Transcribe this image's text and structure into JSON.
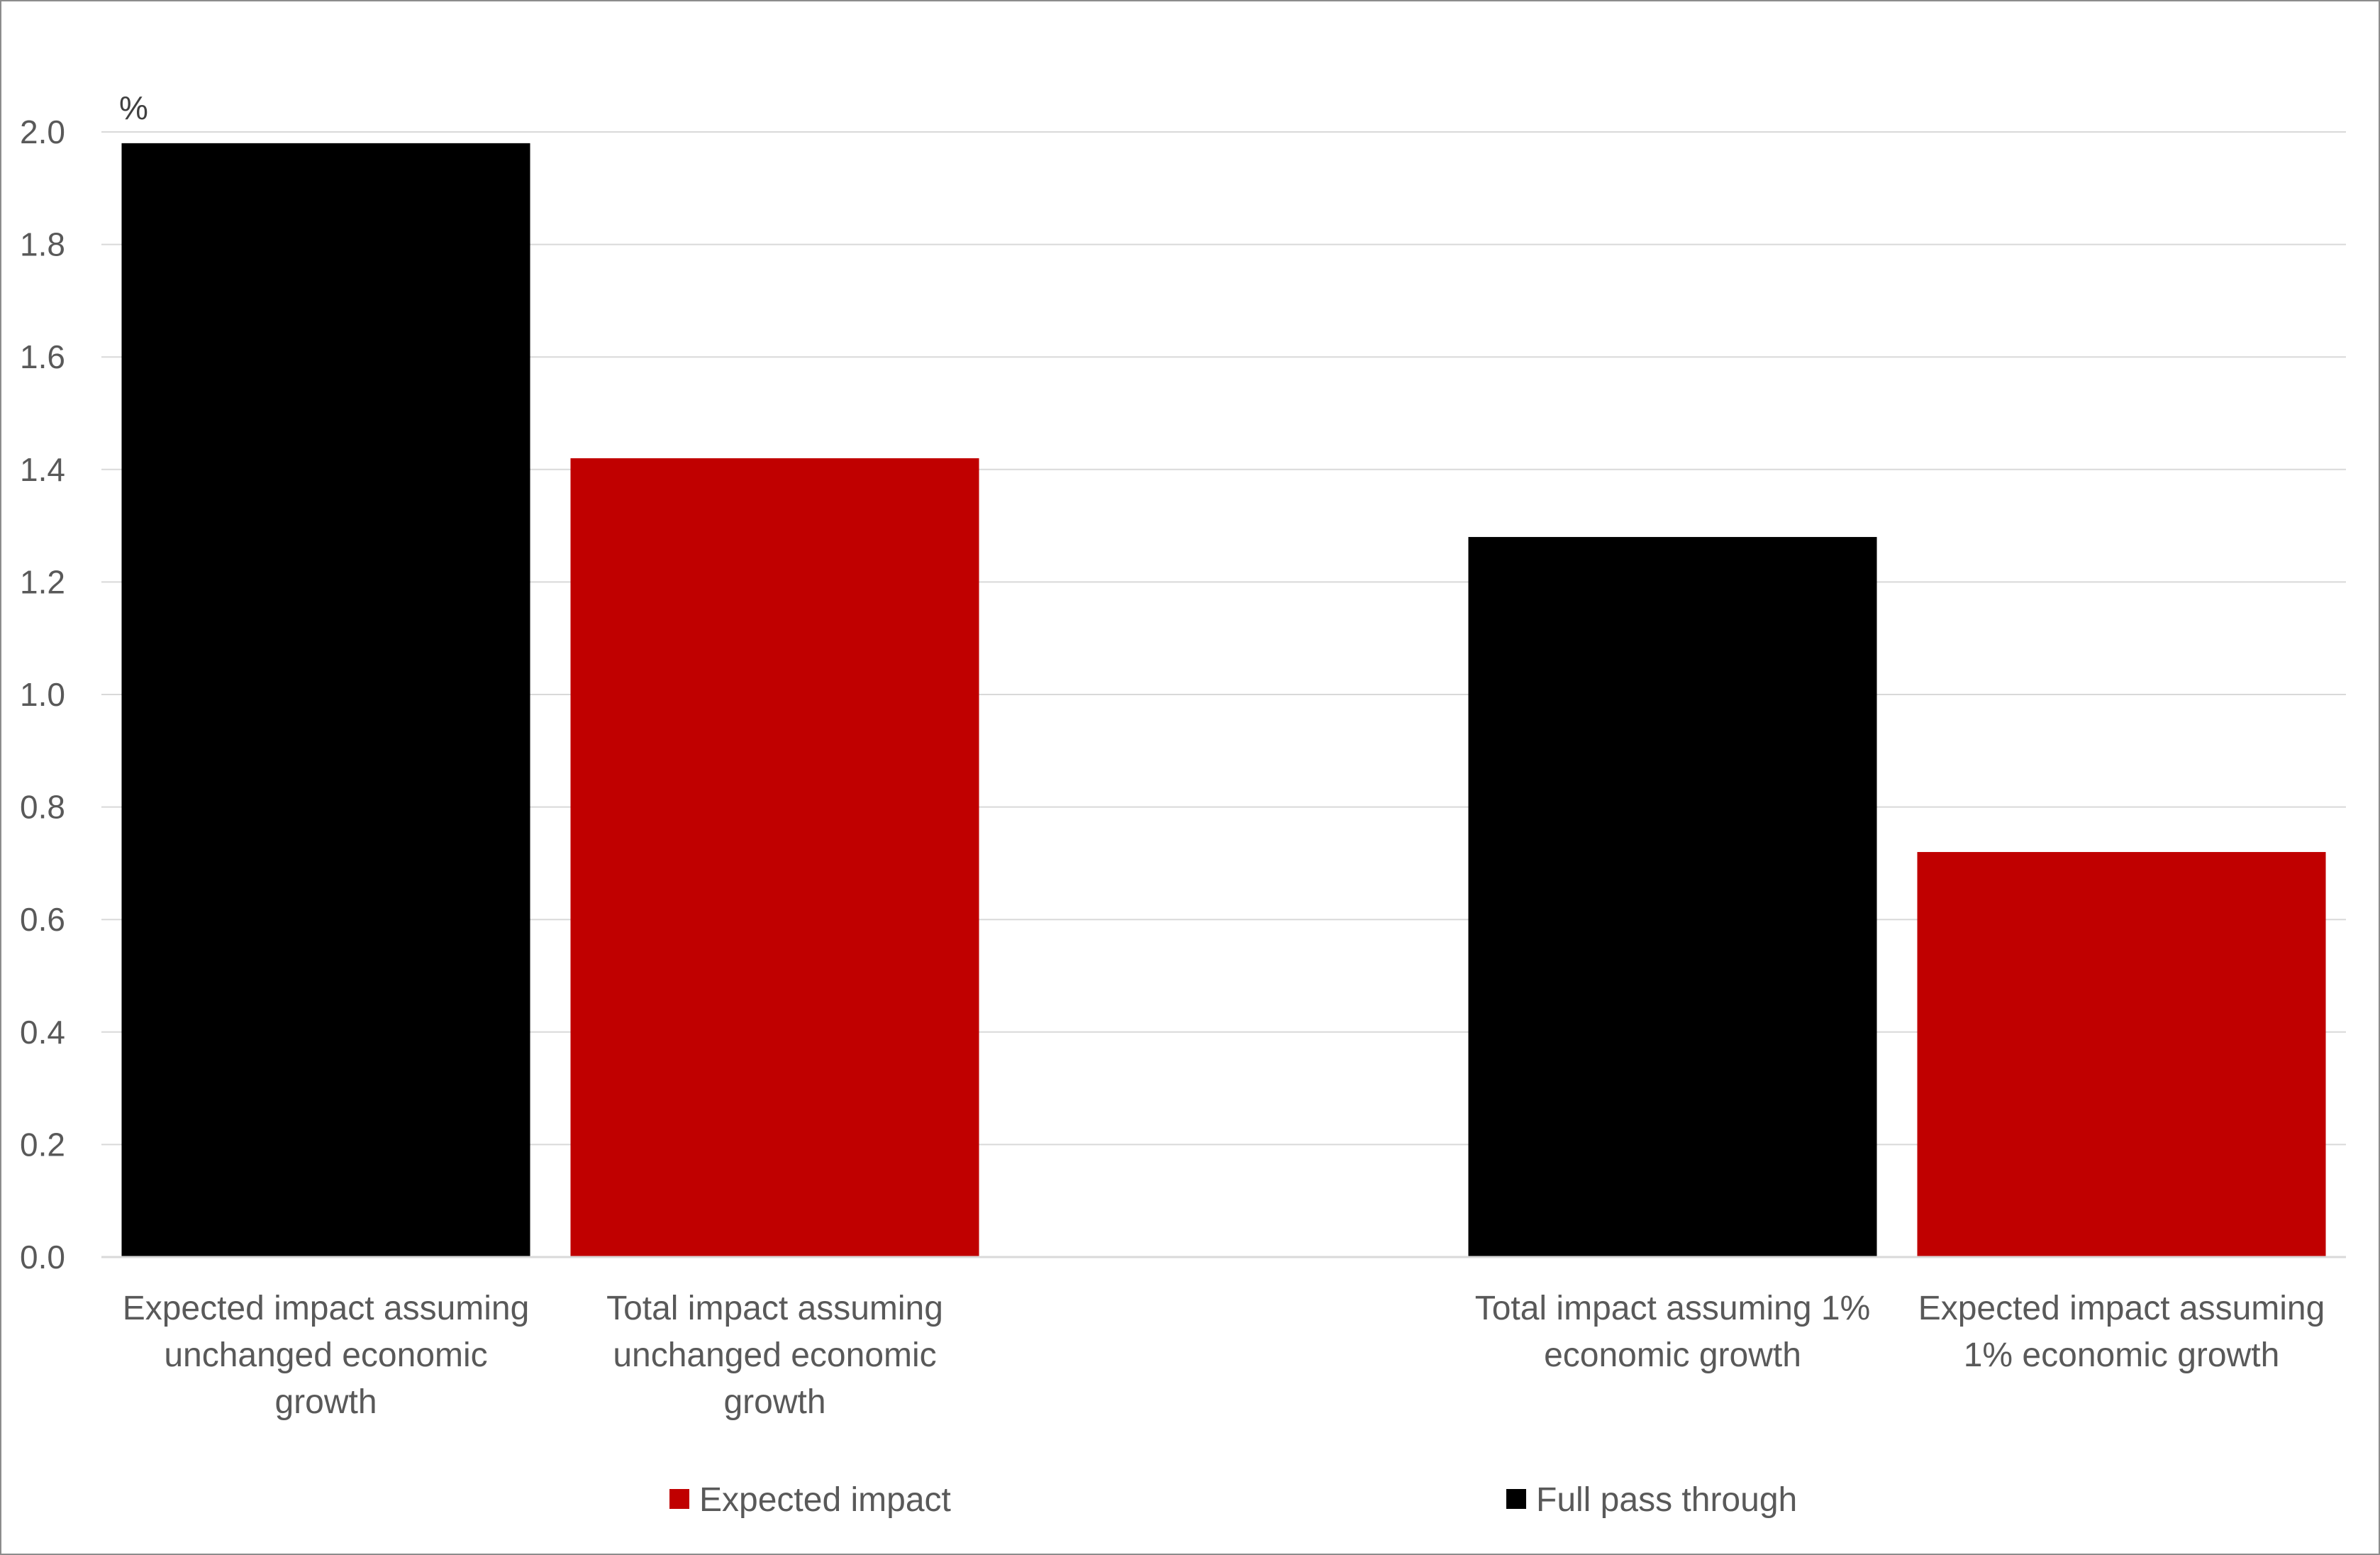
{
  "chart_data": {
    "type": "bar",
    "title": "",
    "xlabel": "",
    "ylabel": "%",
    "ylim": [
      0,
      2.0
    ],
    "yticks": [
      "0.0",
      "0.2",
      "0.4",
      "0.6",
      "0.8",
      "1.0",
      "1.2",
      "1.4",
      "1.6",
      "1.8",
      "2.0"
    ],
    "grid": true,
    "legend_position": "bottom",
    "categories": [
      [
        "Expected  impact assuming",
        "unchanged economic",
        "growth"
      ],
      [
        "Total impact assuming",
        "unchanged economic",
        "growth"
      ],
      [],
      [
        "Total impact assuming 1%",
        "economic growth"
      ],
      [
        "Expected impact assuming",
        "1% economic growth"
      ]
    ],
    "bars": [
      {
        "category_index": 0,
        "value": 1.98,
        "series": "Full pass through"
      },
      {
        "category_index": 1,
        "value": 1.42,
        "series": "Expected impact"
      },
      {
        "category_index": 3,
        "value": 1.28,
        "series": "Full pass through"
      },
      {
        "category_index": 4,
        "value": 0.72,
        "series": "Expected impact"
      }
    ],
    "series": [
      {
        "name": "Expected impact",
        "color": "#c00000"
      },
      {
        "name": "Full pass through",
        "color": "#000000"
      }
    ]
  }
}
